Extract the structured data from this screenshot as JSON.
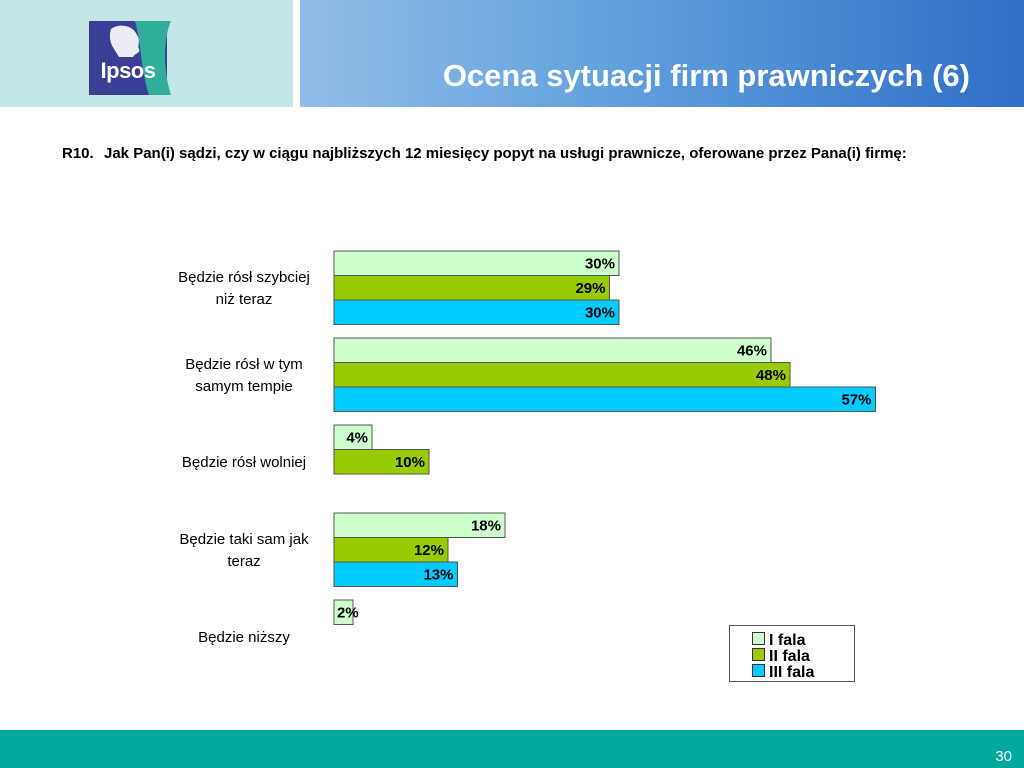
{
  "header": {
    "logo_text": "Ipsos",
    "title": "Ocena sytuacji firm prawniczych (6)"
  },
  "question": {
    "number": "R10.",
    "text": "Jak Pan(i) sądzi, czy w ciągu najbliższych 12 miesięcy popyt na usługi prawnicze, oferowane przez Pana(i) firmę:"
  },
  "chart_data": {
    "type": "bar",
    "orientation": "horizontal",
    "categories": [
      "Będzie rósł szybciej niż teraz",
      "Będzie rósł w tym samym tempie",
      "Będzie rósł wolniej",
      "Będzie taki sam jak teraz",
      "Będzie niższy"
    ],
    "series": [
      {
        "name": "I fala",
        "color": "#ccffcc",
        "values": [
          30,
          46,
          4,
          18,
          2
        ]
      },
      {
        "name": "II fala",
        "color": "#99cc00",
        "values": [
          29,
          48,
          10,
          12,
          null
        ]
      },
      {
        "name": "III fala",
        "color": "#00ccff",
        "values": [
          30,
          57,
          null,
          13,
          null
        ]
      }
    ],
    "value_suffix": "%",
    "xlim": [
      0,
      100
    ],
    "grid": false,
    "legend_position": "bottom-right"
  },
  "footer": {
    "page_number": "30"
  }
}
